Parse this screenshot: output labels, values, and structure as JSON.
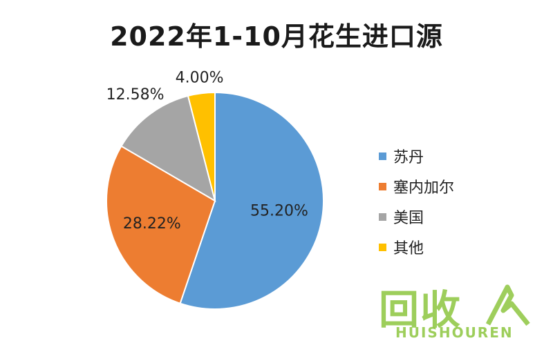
{
  "chart_data": {
    "type": "pie",
    "title": "2022年1-10月花生进口源",
    "categories": [
      "苏丹",
      "塞内加尔",
      "美国",
      "其他"
    ],
    "values": [
      55.2,
      28.22,
      12.58,
      4.0
    ],
    "data_labels": [
      "55.20%",
      "28.22%",
      "12.58%",
      "4.00%"
    ],
    "colors": [
      "#5b9bd5",
      "#ed7d31",
      "#a5a5a5",
      "#ffc000"
    ],
    "legend_position": "right"
  },
  "watermark": {
    "logo_text": "回收",
    "sub_text": "HUISHOUREN",
    "color": "#8dc63f"
  }
}
